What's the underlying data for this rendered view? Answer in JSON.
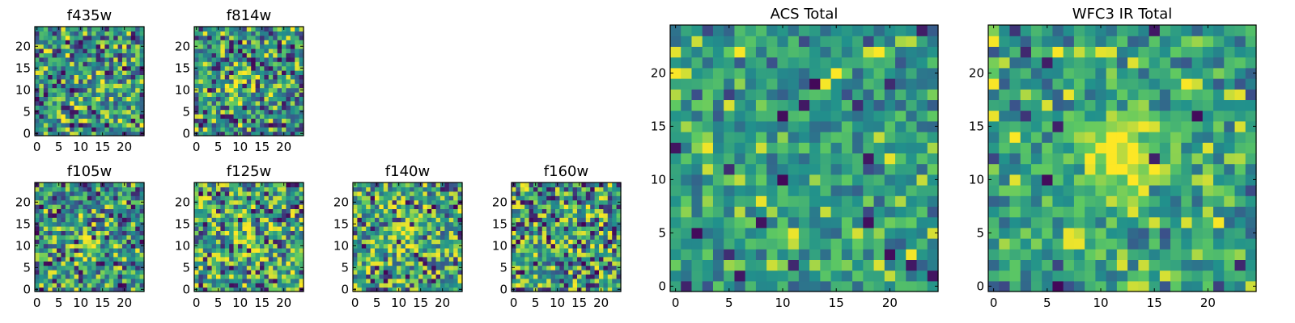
{
  "figure": {
    "colormap": "viridis",
    "colormap_stops": [
      "#440154",
      "#3b528b",
      "#21918c",
      "#5ec962",
      "#fde725"
    ]
  },
  "chart_data": [
    {
      "type": "heatmap",
      "title": "f435w",
      "grid_size": 25,
      "xlim": [
        0,
        24
      ],
      "ylim": [
        0,
        24
      ],
      "x_ticks": [
        0,
        5,
        10,
        15,
        20
      ],
      "y_ticks": [
        0,
        5,
        10,
        15,
        20
      ],
      "seed": 11,
      "blob": [
        0,
        0,
        0
      ],
      "dark_frac": 0.05,
      "bright_frac": 0.06
    },
    {
      "type": "heatmap",
      "title": "f814w",
      "grid_size": 25,
      "xlim": [
        0,
        24
      ],
      "ylim": [
        0,
        24
      ],
      "x_ticks": [
        0,
        5,
        10,
        15,
        20
      ],
      "y_ticks": [
        0,
        5,
        10,
        15,
        20
      ],
      "seed": 23,
      "blob": [
        10,
        11,
        0.35
      ],
      "dark_frac": 0.06,
      "bright_frac": 0.05
    },
    {
      "type": "heatmap",
      "title": "f105w",
      "grid_size": 25,
      "xlim": [
        0,
        24
      ],
      "ylim": [
        0,
        24
      ],
      "x_ticks": [
        0,
        5,
        10,
        15,
        20
      ],
      "y_ticks": [
        0,
        5,
        10,
        15,
        20
      ],
      "seed": 37,
      "blob": [
        11,
        11,
        0.4
      ],
      "dark_frac": 0.05,
      "bright_frac": 0.05
    },
    {
      "type": "heatmap",
      "title": "f125w",
      "grid_size": 25,
      "xlim": [
        0,
        24
      ],
      "ylim": [
        0,
        24
      ],
      "x_ticks": [
        0,
        5,
        10,
        15,
        20
      ],
      "y_ticks": [
        0,
        5,
        10,
        15,
        20
      ],
      "seed": 41,
      "blob": [
        11,
        11,
        0.45
      ],
      "dark_frac": 0.04,
      "bright_frac": 0.14
    },
    {
      "type": "heatmap",
      "title": "f140w",
      "grid_size": 25,
      "xlim": [
        0,
        24
      ],
      "ylim": [
        0,
        24
      ],
      "x_ticks": [
        0,
        5,
        10,
        15,
        20
      ],
      "y_ticks": [
        0,
        5,
        10,
        15,
        20
      ],
      "seed": 53,
      "blob": [
        11,
        12,
        0.45
      ],
      "dark_frac": 0.04,
      "bright_frac": 0.16
    },
    {
      "type": "heatmap",
      "title": "f160w",
      "grid_size": 25,
      "xlim": [
        0,
        24
      ],
      "ylim": [
        0,
        24
      ],
      "x_ticks": [
        0,
        5,
        10,
        15,
        20
      ],
      "y_ticks": [
        0,
        5,
        10,
        15,
        20
      ],
      "seed": 67,
      "blob": [
        11,
        11,
        0.35
      ],
      "dark_frac": 0.07,
      "bright_frac": 0.12
    },
    {
      "type": "heatmap",
      "title": "ACS Total",
      "grid_size": 25,
      "xlim": [
        0,
        24
      ],
      "ylim": [
        0,
        24
      ],
      "x_ticks": [
        0,
        5,
        10,
        15,
        20
      ],
      "y_ticks": [
        0,
        5,
        10,
        15,
        20
      ],
      "seed": 79,
      "blob": [
        0,
        0,
        0
      ],
      "dark_frac": 0.025,
      "bright_frac": 0.04,
      "low_contrast": true
    },
    {
      "type": "heatmap",
      "title": "WFC3 IR Total",
      "grid_size": 25,
      "xlim": [
        0,
        24
      ],
      "ylim": [
        0,
        24
      ],
      "x_ticks": [
        0,
        5,
        10,
        15,
        20
      ],
      "y_ticks": [
        0,
        5,
        10,
        15,
        20
      ],
      "seed": 97,
      "blob": [
        12,
        12,
        0.5
      ],
      "dark_frac": 0.025,
      "bright_frac": 0.04,
      "low_contrast": true
    }
  ]
}
